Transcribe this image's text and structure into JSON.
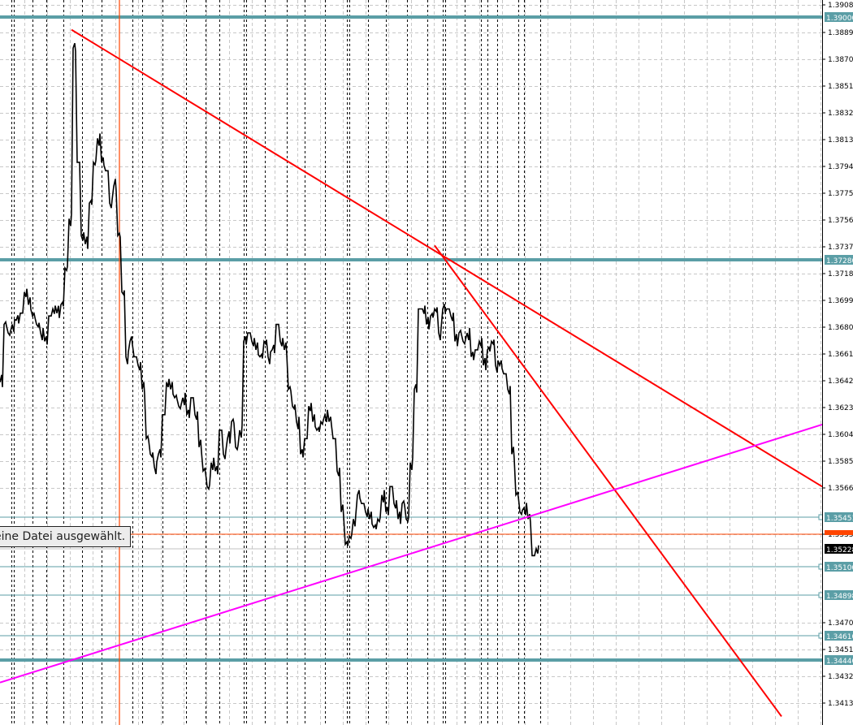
{
  "chart_data": {
    "type": "line",
    "title": "",
    "xlabel": "",
    "ylabel": "",
    "ylim": [
      1.3404,
      1.3912
    ],
    "grid": true,
    "y_ticks": [
      "1.39085",
      "1.38890",
      "1.38700",
      "1.38510",
      "1.38320",
      "1.38130",
      "1.37940",
      "1.37750",
      "1.37560",
      "1.37370",
      "1.37180",
      "1.36990",
      "1.36800",
      "1.36610",
      "1.36420",
      "1.36230",
      "1.36040",
      "1.35850",
      "1.35660",
      "1.35335",
      "1.34705",
      "1.34515",
      "1.34325",
      "1.34135"
    ],
    "series": [
      {
        "color": "#000000",
        "values": [
          1.3641,
          1.3682,
          1.3676,
          1.3682,
          1.3685,
          1.369,
          1.3705,
          1.3696,
          1.3688,
          1.3682,
          1.3676,
          1.367,
          1.3688,
          1.3693,
          1.369,
          1.3696,
          1.3722,
          1.3757,
          1.3878,
          1.3797,
          1.3745,
          1.3739,
          1.3768,
          1.3797,
          1.3814,
          1.3797,
          1.3791,
          1.3768,
          1.378,
          1.3745,
          1.3705,
          1.3659,
          1.367,
          1.3659,
          1.3653,
          1.3636,
          1.3601,
          1.359,
          1.3581,
          1.359,
          1.3618,
          1.3641,
          1.3636,
          1.363,
          1.3624,
          1.363,
          1.3618,
          1.363,
          1.3618,
          1.3595,
          1.3578,
          1.3567,
          1.3584,
          1.3578,
          1.3607,
          1.359,
          1.3601,
          1.3613,
          1.3595,
          1.3607,
          1.367,
          1.3676,
          1.367,
          1.3664,
          1.3659,
          1.367,
          1.3659,
          1.3664,
          1.3682,
          1.367,
          1.3664,
          1.3636,
          1.3624,
          1.3613,
          1.359,
          1.3601,
          1.3624,
          1.3613,
          1.3607,
          1.3613,
          1.3618,
          1.3613,
          1.3601,
          1.3578,
          1.3549,
          1.3526,
          1.3532,
          1.3544,
          1.3561,
          1.3555,
          1.3549,
          1.3544,
          1.3538,
          1.3544,
          1.3561,
          1.3549,
          1.3567,
          1.3555,
          1.3544,
          1.3555,
          1.3544,
          1.3584,
          1.3636,
          1.3693,
          1.3693,
          1.3682,
          1.3688,
          1.3693,
          1.3676,
          1.3693,
          1.3693,
          1.3688,
          1.367,
          1.3676,
          1.367,
          1.3676,
          1.3659,
          1.3664,
          1.367,
          1.3653,
          1.3664,
          1.367,
          1.3653,
          1.3653,
          1.3647,
          1.3636,
          1.359,
          1.3561,
          1.3549,
          1.3552,
          1.3544,
          1.3518,
          1.3523
        ]
      }
    ],
    "horizontal_levels": [
      {
        "price": 1.39,
        "label": "1.39000",
        "style": "thick",
        "color": "#5b9ea6"
      },
      {
        "price": 1.3728,
        "label": "1.37280",
        "style": "thick",
        "color": "#5b9ea6"
      },
      {
        "price": 1.35451,
        "label": "1.35451",
        "style": "thin",
        "color": "#5b9ea6"
      },
      {
        "price": 1.351,
        "label": "1.35100",
        "style": "thin",
        "color": "#5b9ea6"
      },
      {
        "price": 1.34898,
        "label": "1.34898",
        "style": "thin",
        "color": "#5b9ea6"
      },
      {
        "price": 1.3461,
        "label": "1.34610",
        "style": "thin",
        "color": "#5b9ea6"
      },
      {
        "price": 1.3444,
        "label": "1.34440",
        "style": "thick",
        "color": "#5b9ea6"
      }
    ],
    "ask_line": {
      "price": 1.35335,
      "color": "#ff4500"
    },
    "bid_line": {
      "price": 1.35228,
      "label": "1.35228",
      "color": "#c0c0c0"
    },
    "trendlines": [
      {
        "from": [
          17.6,
          1.3891
        ],
        "to": [
          202.4,
          1.3567
        ],
        "color": "#ff0000"
      },
      {
        "from": [
          107,
          1.3738
        ],
        "to": [
          192.4,
          1.3404
        ],
        "color": "#ff0000"
      },
      {
        "from": [
          0,
          1.3428
        ],
        "to": [
          202.4,
          1.3611
        ],
        "color": "#ff00ff"
      }
    ],
    "vertical_marker": {
      "index": 29.4,
      "color": "#ff4500"
    }
  },
  "tooltip": {
    "text": "eine Datei ausgewählt."
  }
}
